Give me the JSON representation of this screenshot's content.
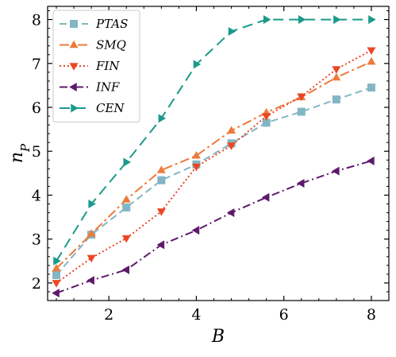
{
  "chart_data": {
    "type": "line",
    "xlabel": "B",
    "ylabel": "n",
    "ylabel_sub": "P",
    "xlim": [
      0.6,
      8.4
    ],
    "ylim": [
      1.6,
      8.3
    ],
    "xticks": [
      2,
      4,
      6,
      8
    ],
    "yticks": [
      2,
      3,
      4,
      5,
      6,
      7,
      8
    ],
    "xtick_labels": [
      "2",
      "4",
      "6",
      "8"
    ],
    "ytick_labels": [
      "2",
      "3",
      "4",
      "5",
      "6",
      "7",
      "8"
    ],
    "legend_position": "top-left",
    "grid": false,
    "x": [
      0.8,
      1.6,
      2.4,
      3.2,
      4.0,
      4.8,
      5.6,
      6.4,
      7.2,
      8.0
    ],
    "series": [
      {
        "name": "PTAS",
        "color": "#82b6c4",
        "dash": "9,5",
        "marker": "square",
        "values": [
          2.18,
          3.1,
          3.72,
          4.34,
          4.7,
          5.18,
          5.65,
          5.9,
          6.18,
          6.45
        ]
      },
      {
        "name": "SMQ",
        "color": "#ee7a3b",
        "dash": "12,4,3,4",
        "marker": "triangle-up",
        "values": [
          2.33,
          3.12,
          3.9,
          4.57,
          4.9,
          5.47,
          5.88,
          6.23,
          6.68,
          7.04
        ]
      },
      {
        "name": "FIN",
        "color": "#ec4624",
        "dash": "2,3",
        "marker": "triangle-down",
        "values": [
          2.0,
          2.57,
          3.02,
          3.63,
          4.65,
          5.13,
          5.8,
          6.25,
          6.87,
          7.3
        ]
      },
      {
        "name": "INF",
        "color": "#5d1a6b",
        "dash": "10,4,2,4",
        "marker": "triangle-left",
        "values": [
          1.77,
          2.06,
          2.3,
          2.87,
          3.2,
          3.6,
          3.95,
          4.27,
          4.55,
          4.78
        ]
      },
      {
        "name": "CEN",
        "color": "#1b9a8b",
        "dash": "13,7",
        "marker": "triangle-right",
        "values": [
          2.5,
          3.8,
          4.75,
          5.75,
          6.98,
          7.73,
          8.0,
          8.0,
          8.0,
          8.0
        ]
      }
    ]
  }
}
